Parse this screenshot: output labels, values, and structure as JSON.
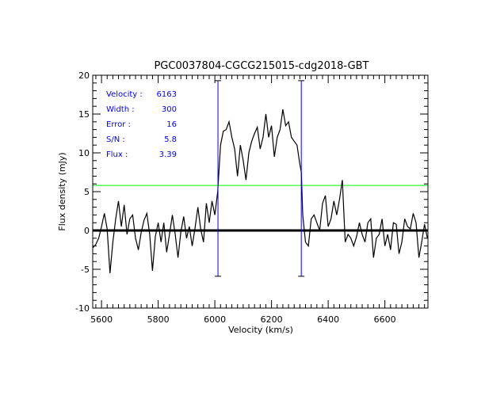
{
  "chart_data": {
    "type": "line",
    "title": "PGC0037804-CGCG215015-cdg2018-GBT",
    "xlabel": "Velocity (km/s)",
    "ylabel": "Flux density (mJy)",
    "xlim": [
      5569,
      6752
    ],
    "ylim": [
      -10,
      20
    ],
    "x_ticks": [
      5600,
      5800,
      6000,
      6200,
      6400,
      6600
    ],
    "x_tick_labels": [
      "5600",
      "5800",
      "6000",
      "6200",
      "6400",
      "6600"
    ],
    "y_ticks": [
      -10,
      -5,
      0,
      5,
      10,
      15,
      20
    ],
    "y_tick_labels": [
      "-10",
      "-5",
      "0",
      "5",
      "10",
      "15",
      "20"
    ],
    "x_minor_step": 20,
    "y_minor_step": 1,
    "grid": false,
    "series": [
      {
        "name": "spectrum",
        "color": "#000000",
        "x": [
          5570,
          5580,
          5590,
          5600,
          5610,
          5620,
          5630,
          5640,
          5650,
          5660,
          5670,
          5680,
          5690,
          5700,
          5710,
          5720,
          5730,
          5740,
          5750,
          5760,
          5770,
          5780,
          5790,
          5800,
          5810,
          5820,
          5830,
          5840,
          5850,
          5860,
          5870,
          5880,
          5890,
          5900,
          5910,
          5920,
          5930,
          5940,
          5950,
          5960,
          5970,
          5980,
          5990,
          6000,
          6010,
          6020,
          6030,
          6040,
          6050,
          6060,
          6070,
          6080,
          6090,
          6100,
          6110,
          6120,
          6130,
          6140,
          6150,
          6160,
          6170,
          6180,
          6190,
          6200,
          6210,
          6220,
          6230,
          6240,
          6250,
          6260,
          6270,
          6280,
          6290,
          6300,
          6305,
          6310,
          6320,
          6330,
          6340,
          6350,
          6360,
          6370,
          6380,
          6390,
          6400,
          6410,
          6420,
          6430,
          6440,
          6450,
          6460,
          6470,
          6480,
          6490,
          6500,
          6510,
          6520,
          6530,
          6540,
          6550,
          6560,
          6570,
          6580,
          6590,
          6600,
          6610,
          6620,
          6630,
          6640,
          6650,
          6660,
          6670,
          6680,
          6690,
          6700,
          6710,
          6720,
          6730,
          6740,
          6750
        ],
        "y": [
          -2.2,
          -1.8,
          -1.0,
          0.5,
          2.2,
          0.2,
          -5.5,
          -1.5,
          1.5,
          3.8,
          0.5,
          3.3,
          -0.5,
          1.5,
          2.0,
          -1.0,
          -2.5,
          -0.3,
          1.3,
          2.2,
          -0.5,
          -5.2,
          -0.8,
          1.0,
          -1.5,
          1.0,
          -2.8,
          -0.5,
          2.0,
          -0.5,
          -3.5,
          -0.2,
          1.8,
          -1.0,
          0.5,
          -2.0,
          0.3,
          3.0,
          0.2,
          -1.5,
          3.5,
          1.0,
          3.8,
          2.0,
          5.0,
          11.0,
          12.8,
          13.0,
          14.0,
          12.0,
          10.5,
          7.0,
          11.0,
          9.0,
          6.5,
          10.0,
          11.5,
          12.5,
          13.3,
          10.5,
          12.0,
          15.0,
          12.0,
          13.5,
          9.5,
          12.0,
          13.0,
          15.6,
          13.5,
          14.0,
          12.0,
          11.5,
          11.0,
          8.5,
          7.5,
          2.0,
          -1.5,
          -2.0,
          1.5,
          2.0,
          1.0,
          0.0,
          3.5,
          4.5,
          0.5,
          1.5,
          3.8,
          2.0,
          4.0,
          6.5,
          -1.5,
          -0.5,
          -1.0,
          -2.0,
          -0.8,
          1.0,
          -0.5,
          -1.5,
          1.0,
          1.5,
          -3.5,
          -1.0,
          -0.5,
          1.5,
          -2.0,
          -0.5,
          -2.5,
          1.0,
          0.8,
          -3.0,
          -1.5,
          1.5,
          0.5,
          0.2,
          2.2,
          1.0,
          -3.5,
          -1.5,
          0.8,
          -1.0
        ]
      }
    ],
    "zero_line": {
      "y": 0,
      "color": "#000000"
    },
    "threshold_line": {
      "y": 5.8,
      "color": "#00ff00"
    },
    "velocity_markers": {
      "x": [
        6011,
        6305
      ],
      "y_range": [
        -5.9,
        19.3
      ],
      "color": "#0000ff"
    },
    "annotations": [
      {
        "label": "Velocity :",
        "value": "6163"
      },
      {
        "label": "Width :",
        "value": "300"
      },
      {
        "label": "Error :",
        "value": "16"
      },
      {
        "label": "S/N :",
        "value": "5.8"
      },
      {
        "label": "Flux :",
        "value": "3.39"
      }
    ],
    "annotation_color": "#0000ff"
  }
}
